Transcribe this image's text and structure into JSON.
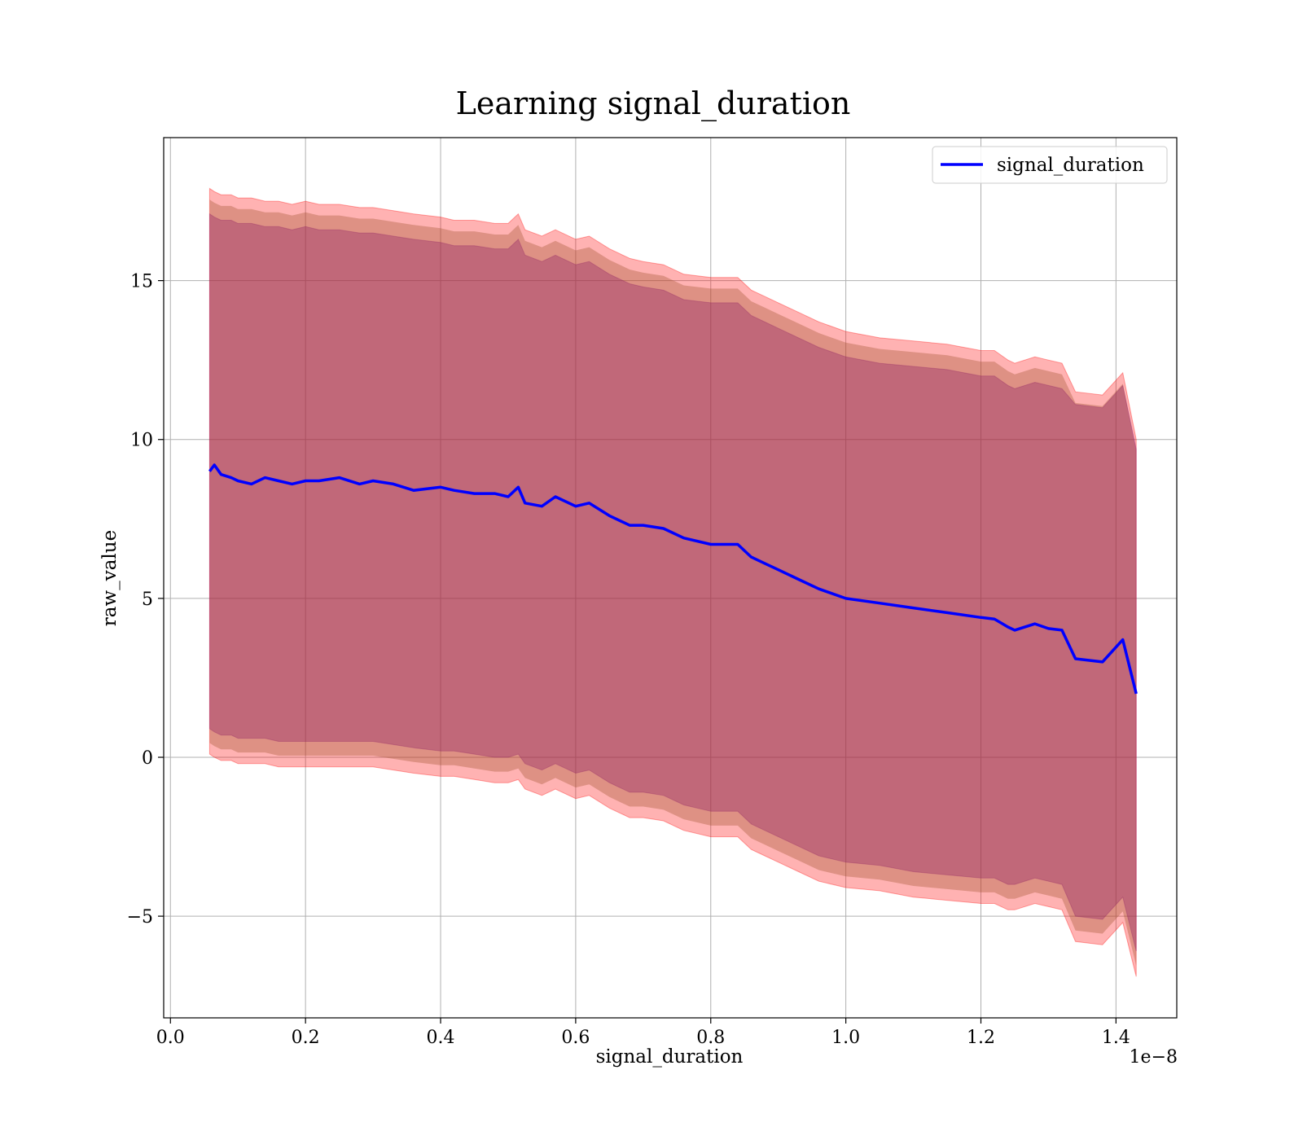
{
  "chart_data": {
    "type": "line",
    "title": "Learning signal_duration",
    "xlabel": "signal_duration",
    "ylabel": "raw_value",
    "x_offset_label": "1e−8",
    "xlim": [
      -0.01,
      1.49
    ],
    "ylim": [
      -8.2,
      19.5
    ],
    "x_ticks": [
      0.0,
      0.2,
      0.4,
      0.6,
      0.8,
      1.0,
      1.2,
      1.4
    ],
    "x_tick_labels": [
      "0.0",
      "0.2",
      "0.4",
      "0.6",
      "0.8",
      "1.0",
      "1.2",
      "1.4"
    ],
    "y_ticks": [
      -5,
      0,
      5,
      10,
      15
    ],
    "y_tick_labels": [
      "−5",
      "0",
      "5",
      "10",
      "15"
    ],
    "grid": true,
    "legend_position": "top-right",
    "colors": {
      "line": "#0000ff",
      "band_outer": "#ff0000",
      "band_inner": "#800080",
      "band_overlap": "#a0522d"
    },
    "series": [
      {
        "name": "signal_duration",
        "x": [
          0.058,
          0.065,
          0.075,
          0.09,
          0.1,
          0.12,
          0.14,
          0.16,
          0.18,
          0.2,
          0.22,
          0.25,
          0.28,
          0.3,
          0.33,
          0.36,
          0.4,
          0.42,
          0.45,
          0.48,
          0.5,
          0.515,
          0.525,
          0.55,
          0.57,
          0.6,
          0.62,
          0.65,
          0.68,
          0.7,
          0.73,
          0.76,
          0.8,
          0.84,
          0.86,
          0.88,
          0.9,
          0.93,
          0.96,
          1.0,
          1.05,
          1.1,
          1.15,
          1.2,
          1.22,
          1.24,
          1.25,
          1.28,
          1.3,
          1.32,
          1.34,
          1.38,
          1.41,
          1.43
        ],
        "y": [
          9.0,
          9.2,
          8.9,
          8.8,
          8.7,
          8.6,
          8.8,
          8.7,
          8.6,
          8.7,
          8.7,
          8.8,
          8.6,
          8.7,
          8.6,
          8.4,
          8.5,
          8.4,
          8.3,
          8.3,
          8.2,
          8.5,
          8.0,
          7.9,
          8.2,
          7.9,
          8.0,
          7.6,
          7.3,
          7.3,
          7.2,
          6.9,
          6.7,
          6.7,
          6.3,
          6.1,
          5.9,
          5.6,
          5.3,
          5.0,
          4.85,
          4.7,
          4.55,
          4.4,
          4.35,
          4.1,
          4.0,
          4.2,
          4.05,
          4.0,
          3.1,
          3.0,
          3.7,
          2.0
        ]
      }
    ],
    "band_outer_upper": [
      17.9,
      17.8,
      17.7,
      17.7,
      17.6,
      17.6,
      17.5,
      17.5,
      17.4,
      17.5,
      17.4,
      17.4,
      17.3,
      17.3,
      17.2,
      17.1,
      17.0,
      16.9,
      16.9,
      16.8,
      16.8,
      17.1,
      16.6,
      16.4,
      16.6,
      16.3,
      16.4,
      16.0,
      15.7,
      15.6,
      15.5,
      15.2,
      15.1,
      15.1,
      14.7,
      14.5,
      14.3,
      14.0,
      13.7,
      13.4,
      13.2,
      13.1,
      13.0,
      12.8,
      12.8,
      12.5,
      12.4,
      12.6,
      12.5,
      12.4,
      11.5,
      11.4,
      12.1,
      10.0
    ],
    "band_outer_lower": [
      0.1,
      0.0,
      -0.1,
      -0.1,
      -0.2,
      -0.2,
      -0.2,
      -0.3,
      -0.3,
      -0.3,
      -0.3,
      -0.3,
      -0.3,
      -0.3,
      -0.4,
      -0.5,
      -0.6,
      -0.6,
      -0.7,
      -0.8,
      -0.8,
      -0.7,
      -1.0,
      -1.2,
      -1.0,
      -1.3,
      -1.2,
      -1.6,
      -1.9,
      -1.9,
      -2.0,
      -2.3,
      -2.5,
      -2.5,
      -2.9,
      -3.1,
      -3.3,
      -3.6,
      -3.9,
      -4.1,
      -4.2,
      -4.4,
      -4.5,
      -4.6,
      -4.6,
      -4.8,
      -4.8,
      -4.6,
      -4.7,
      -4.8,
      -5.8,
      -5.9,
      -5.2,
      -6.9
    ],
    "band_inner_upper": [
      17.1,
      17.0,
      16.9,
      16.9,
      16.8,
      16.8,
      16.7,
      16.7,
      16.6,
      16.7,
      16.6,
      16.6,
      16.5,
      16.5,
      16.4,
      16.3,
      16.2,
      16.1,
      16.1,
      16.0,
      16.0,
      16.3,
      15.8,
      15.6,
      15.8,
      15.5,
      15.6,
      15.2,
      14.9,
      14.8,
      14.7,
      14.4,
      14.3,
      14.3,
      13.9,
      13.7,
      13.5,
      13.2,
      12.9,
      12.6,
      12.4,
      12.3,
      12.2,
      12.0,
      12.0,
      11.7,
      11.6,
      11.8,
      11.7,
      11.6,
      11.1,
      11.0,
      11.7,
      9.7
    ],
    "band_inner_lower": [
      0.9,
      0.8,
      0.7,
      0.7,
      0.6,
      0.6,
      0.6,
      0.5,
      0.5,
      0.5,
      0.5,
      0.5,
      0.5,
      0.5,
      0.4,
      0.3,
      0.2,
      0.2,
      0.1,
      0.0,
      0.0,
      0.1,
      -0.2,
      -0.4,
      -0.2,
      -0.5,
      -0.4,
      -0.8,
      -1.1,
      -1.1,
      -1.2,
      -1.5,
      -1.7,
      -1.7,
      -2.1,
      -2.3,
      -2.5,
      -2.8,
      -3.1,
      -3.3,
      -3.4,
      -3.6,
      -3.7,
      -3.8,
      -3.8,
      -4.0,
      -4.0,
      -3.8,
      -3.9,
      -4.0,
      -5.0,
      -5.1,
      -4.4,
      -6.1
    ]
  }
}
